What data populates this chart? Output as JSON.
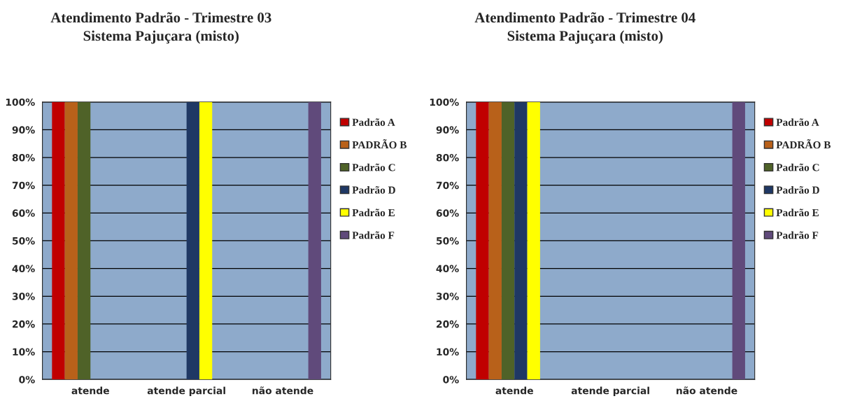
{
  "chart_data": [
    {
      "type": "bar",
      "title": "Atendimento Padrão - Trimestre 03\nSistema Pajuçara (misto)",
      "categories": [
        "atende",
        "atende parcial",
        "não atende"
      ],
      "ylim": [
        0,
        100
      ],
      "yticks": [
        {
          "value": 0,
          "label": "0%"
        },
        {
          "value": 10,
          "label": "10%"
        },
        {
          "value": 20,
          "label": "20%"
        },
        {
          "value": 30,
          "label": "30%"
        },
        {
          "value": 40,
          "label": "40%"
        },
        {
          "value": 50,
          "label": "50%"
        },
        {
          "value": 60,
          "label": "60%"
        },
        {
          "value": 70,
          "label": "70%"
        },
        {
          "value": 80,
          "label": "80%"
        },
        {
          "value": 90,
          "label": "90%"
        },
        {
          "value": 100,
          "label": "100%"
        }
      ],
      "grid": "y",
      "legend": "right",
      "series": [
        {
          "name": "Padrão A",
          "color": "#c00000",
          "values": [
            100,
            null,
            null
          ]
        },
        {
          "name": "PADRÃO B",
          "color": "#b8611a",
          "values": [
            100,
            null,
            null
          ]
        },
        {
          "name": "Padrão C",
          "color": "#4f6228",
          "values": [
            100,
            null,
            null
          ]
        },
        {
          "name": "Padrão D",
          "color": "#1f3864",
          "values": [
            null,
            100,
            null
          ]
        },
        {
          "name": "Padrão E",
          "color": "#ffff00",
          "values": [
            null,
            100,
            null
          ]
        },
        {
          "name": "Padrão F",
          "color": "#604a7b",
          "values": [
            null,
            null,
            100
          ]
        }
      ]
    },
    {
      "type": "bar",
      "title": "Atendimento Padrão - Trimestre 04\nSistema Pajuçara (misto)",
      "categories": [
        "atende",
        "atende parcial",
        "não atende"
      ],
      "ylim": [
        0,
        100
      ],
      "yticks": [
        {
          "value": 0,
          "label": "0%"
        },
        {
          "value": 10,
          "label": "10%"
        },
        {
          "value": 20,
          "label": "20%"
        },
        {
          "value": 30,
          "label": "30%"
        },
        {
          "value": 40,
          "label": "40%"
        },
        {
          "value": 50,
          "label": "50%"
        },
        {
          "value": 60,
          "label": "60%"
        },
        {
          "value": 70,
          "label": "70%"
        },
        {
          "value": 80,
          "label": "80%"
        },
        {
          "value": 90,
          "label": "90%"
        },
        {
          "value": 100,
          "label": "100%"
        }
      ],
      "grid": "y",
      "legend": "right",
      "series": [
        {
          "name": "Padrão A",
          "color": "#c00000",
          "values": [
            100,
            null,
            null
          ]
        },
        {
          "name": "PADRÃO B",
          "color": "#b8611a",
          "values": [
            100,
            null,
            null
          ]
        },
        {
          "name": "Padrão C",
          "color": "#4f6228",
          "values": [
            100,
            null,
            null
          ]
        },
        {
          "name": "Padrão D",
          "color": "#1f3864",
          "values": [
            100,
            null,
            null
          ]
        },
        {
          "name": "Padrão E",
          "color": "#ffff00",
          "values": [
            100,
            null,
            null
          ]
        },
        {
          "name": "Padrão F",
          "color": "#604a7b",
          "values": [
            null,
            null,
            100
          ]
        }
      ]
    }
  ]
}
